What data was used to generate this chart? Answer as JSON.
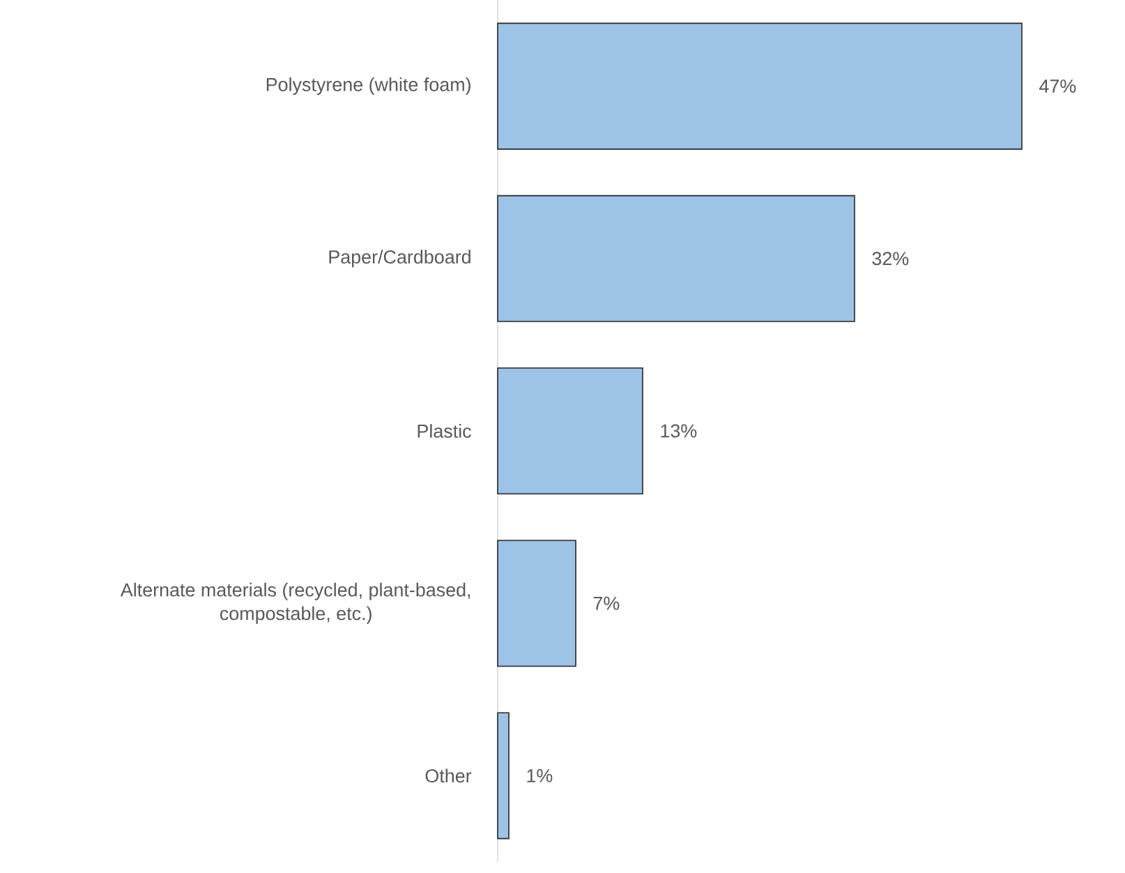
{
  "chart_data": {
    "type": "bar",
    "orientation": "horizontal",
    "categories": [
      "Polystyrene (white foam)",
      "Paper/Cardboard",
      "Plastic",
      "Alternate materials (recycled, plant-based, compostable, etc.)",
      "Other"
    ],
    "values": [
      47,
      32,
      13,
      7,
      1
    ],
    "value_labels": [
      "47%",
      "32%",
      "13%",
      "7%",
      "1%"
    ],
    "color": "#9dc3e6"
  }
}
